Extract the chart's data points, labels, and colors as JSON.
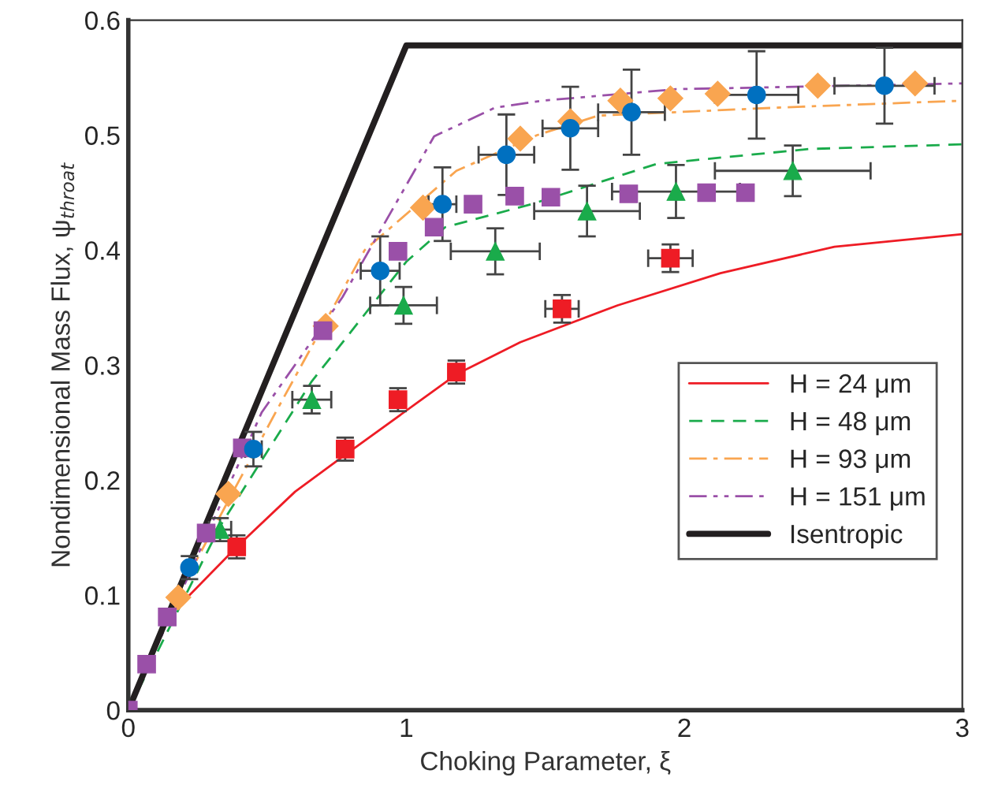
{
  "chart_data": {
    "type": "line",
    "xlabel": "Choking Parameter, ξ",
    "ylabel": "Nondimensional Mass Flux, ψ$_{throat}$",
    "xlim": [
      0,
      3
    ],
    "ylim": [
      0,
      0.6
    ],
    "xticks": [
      0,
      1,
      2,
      3
    ],
    "yticks": [
      {
        "value": 0,
        "label": "0"
      },
      0.1,
      0.2,
      0.3,
      0.4,
      0.5,
      0.6
    ],
    "grid": false,
    "legend": "bottom right",
    "series": [
      {
        "name": "H = 24 μm",
        "color": "#ee1c25",
        "line_style": "solid",
        "x": [
          0,
          0.127,
          0.39,
          0.6,
          0.78,
          1.18,
          1.41,
          1.76,
          2.13,
          2.54,
          3
        ],
        "values": [
          0,
          0.077,
          0.142,
          0.19,
          0.222,
          0.292,
          0.32,
          0.352,
          0.38,
          0.403,
          0.414
        ]
      },
      {
        "name": "H = 48 μm",
        "color": "#1aab4b",
        "line_style": "dashed",
        "x": [
          0,
          0.33,
          0.66,
          1.0,
          1.14,
          1.45,
          1.9,
          2.45,
          3
        ],
        "values": [
          0,
          0.16,
          0.286,
          0.39,
          0.42,
          0.44,
          0.475,
          0.488,
          0.492
        ]
      },
      {
        "name": "H = 93 μm",
        "color": "#f9a550",
        "line_style": "dashdot",
        "x": [
          0,
          0.2,
          0.53,
          0.85,
          1.18,
          1.47,
          1.69,
          2.34,
          3
        ],
        "values": [
          0,
          0.11,
          0.259,
          0.4,
          0.469,
          0.5,
          0.517,
          0.524,
          0.53
        ]
      },
      {
        "name": "H = 151 μm",
        "color": "#9a50a8",
        "line_style": "dashdotdot",
        "x": [
          0,
          0.48,
          0.77,
          1.1,
          1.32,
          1.49,
          1.97,
          3
        ],
        "values": [
          0,
          0.259,
          0.359,
          0.499,
          0.524,
          0.53,
          0.54,
          0.545
        ]
      },
      {
        "name": "Isentropic",
        "color": "#231f20",
        "line_style": "solid",
        "x": [
          0,
          1,
          3
        ],
        "values": [
          0,
          0.578,
          0.578
        ]
      },
      {
        "type": "scatter",
        "color": "#ee1c25",
        "marker": "square",
        "x": [
          0.39,
          0.78,
          0.97,
          1.18,
          1.56,
          1.95
        ],
        "values": [
          0.142,
          0.227,
          0.27,
          0.294,
          0.349,
          0.393
        ],
        "errors": [
          0.01,
          0.01,
          0.01,
          0.01,
          0.012,
          0.012
        ],
        "xerrors": [
          null,
          null,
          null,
          null,
          0.06,
          0.08
        ]
      },
      {
        "type": "scatter",
        "color": "#1aab4b",
        "marker": "triangle",
        "x": [
          0.33,
          0.66,
          0.99,
          1.32,
          1.65,
          1.97,
          2.39
        ],
        "values": [
          0.157,
          0.27,
          0.352,
          0.399,
          0.434,
          0.451,
          0.469
        ],
        "errors": [
          0.01,
          0.012,
          0.016,
          0.02,
          0.022,
          0.023,
          0.022
        ],
        "xerrors": [
          0.04,
          0.07,
          0.12,
          0.16,
          0.19,
          0.23,
          0.28
        ]
      },
      {
        "type": "scatter",
        "color": "#f9a550",
        "marker": "diamond",
        "x": [
          0.18,
          0.36,
          0.71,
          1.06,
          1.41,
          1.59,
          1.77,
          1.95,
          2.12,
          2.48,
          2.83
        ],
        "values": [
          0.098,
          0.188,
          0.334,
          0.437,
          0.497,
          0.512,
          0.53,
          0.532,
          0.536,
          0.543,
          0.545
        ]
      },
      {
        "type": "scatter",
        "color": "#9a50a8",
        "marker": "square",
        "x": [
          0,
          0.066,
          0.14,
          0.28,
          0.41,
          0.7,
          0.97,
          1.1,
          1.24,
          1.39,
          1.52,
          1.8,
          2.08,
          2.22
        ],
        "values": [
          0,
          0.04,
          0.081,
          0.154,
          0.228,
          0.33,
          0.399,
          0.42,
          0.44,
          0.447,
          0.446,
          0.449,
          0.45,
          0.45
        ]
      },
      {
        "type": "scatter",
        "color": "#0070c0",
        "marker": "circle",
        "x": [
          0.22,
          0.45,
          0.906,
          1.13,
          1.36,
          1.59,
          1.81,
          2.26,
          2.72
        ],
        "values": [
          0.124,
          0.227,
          0.382,
          0.44,
          0.483,
          0.506,
          0.52,
          0.535,
          0.543
        ],
        "errors": [
          0.01,
          0.015,
          0.03,
          0.032,
          0.035,
          0.036,
          0.037,
          0.038,
          0.033
        ],
        "xerrors": [
          null,
          0.03,
          0.07,
          0.05,
          0.1,
          0.1,
          0.12,
          0.15,
          0.18
        ]
      }
    ]
  }
}
